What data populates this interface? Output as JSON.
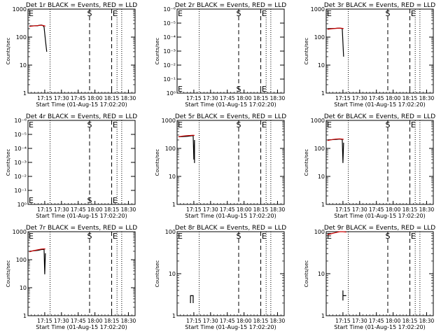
{
  "chart_data": [
    {
      "type": "line",
      "title": "Det 1r BLACK = Events, RED = LLD",
      "xlabel": "Start Time (01-Aug-15 17:02:20)",
      "ylabel": "Counts/sec",
      "scale": "log",
      "ytick_labels": [
        "1",
        "10",
        "100",
        "1000"
      ],
      "xtick_labels": [
        "17:15",
        "17:30",
        "17:45",
        "18:00",
        "18:15",
        "18:30"
      ],
      "markers": [
        "E",
        "S",
        "E"
      ],
      "series": [
        {
          "color": "#000000",
          "x": [
            17.02,
            17.15,
            17.16,
            17.2,
            17.22,
            17.24,
            17.26,
            17.28
          ],
          "y": [
            250,
            255,
            262,
            270,
            260,
            230,
            80,
            30
          ]
        },
        {
          "color": "#cc0000",
          "x": [
            17.02,
            17.08,
            17.14,
            17.2,
            17.24,
            17.26
          ],
          "y": [
            240,
            250,
            258,
            265,
            255,
            245
          ]
        }
      ]
    },
    {
      "type": "line",
      "title": "Det 2r BLACK = Events, RED = LLD",
      "xlabel": "Start Time (01-Aug-15 17:02:20)",
      "ylabel": "Counts/sec",
      "scale": "log",
      "ytick_labels": [
        "10⁰",
        "10⁻¹",
        "10⁻²",
        "10⁻³",
        "10⁻⁴",
        "10⁻⁵",
        "10⁻⁶"
      ],
      "xtick_labels": [
        "17:15",
        "17:30",
        "17:45",
        "18:00",
        "18:15",
        "18:30"
      ],
      "markers": [
        "E",
        "S",
        "E"
      ],
      "series": []
    },
    {
      "type": "line",
      "title": "Det 3r BLACK = Events, RED = LLD",
      "xlabel": "Start Time (01-Aug-15 17:02:20)",
      "ylabel": "Counts/sec",
      "scale": "log",
      "ytick_labels": [
        "1",
        "10",
        "100",
        "1000"
      ],
      "xtick_labels": [
        "17:15",
        "17:30",
        "17:45",
        "18:00",
        "18:15",
        "18:30"
      ],
      "markers": [
        "E",
        "S",
        "E"
      ],
      "series": [
        {
          "color": "#000000",
          "x": [
            17.02,
            17.15,
            17.2,
            17.24,
            17.26
          ],
          "y": [
            200,
            205,
            210,
            200,
            20
          ]
        },
        {
          "color": "#cc0000",
          "x": [
            17.02,
            17.08,
            17.14,
            17.2,
            17.24,
            17.26
          ],
          "y": [
            190,
            198,
            205,
            210,
            205,
            200
          ]
        }
      ]
    },
    {
      "type": "line",
      "title": "Det 4r BLACK = Events, RED = LLD",
      "xlabel": "Start Time (01-Aug-15 17:02:20)",
      "ylabel": "Counts/sec",
      "scale": "log",
      "ytick_labels": [
        "10⁰",
        "10⁻¹",
        "10⁻²",
        "10⁻³",
        "10⁻⁴",
        "10⁻⁵",
        "10⁻⁶"
      ],
      "xtick_labels": [
        "17:15",
        "17:30",
        "17:45",
        "18:00",
        "18:15",
        "18:30"
      ],
      "markers": [
        "E",
        "S",
        "E"
      ],
      "series": []
    },
    {
      "type": "line",
      "title": "Det 5r BLACK = Events, RED = LLD",
      "xlabel": "Start Time (01-Aug-15 17:02:20)",
      "ylabel": "Counts/sec",
      "scale": "log",
      "ytick_labels": [
        "1",
        "10",
        "100",
        "1000"
      ],
      "xtick_labels": [
        "17:15",
        "17:30",
        "17:45",
        "18:00",
        "18:15",
        "18:30"
      ],
      "markers": [
        "E",
        "S",
        "E"
      ],
      "series": [
        {
          "color": "#000000",
          "x": [
            17.02,
            17.15,
            17.2,
            17.24,
            17.25,
            17.26,
            17.26
          ],
          "y": [
            260,
            270,
            280,
            285,
            40,
            200,
            30
          ]
        },
        {
          "color": "#cc0000",
          "x": [
            17.02,
            17.08,
            17.14,
            17.2,
            17.24,
            17.26
          ],
          "y": [
            260,
            275,
            285,
            290,
            295,
            290
          ]
        }
      ]
    },
    {
      "type": "line",
      "title": "Det 6r BLACK = Events, RED = LLD",
      "xlabel": "Start Time (01-Aug-15 17:02:20)",
      "ylabel": "Counts/sec",
      "scale": "log",
      "ytick_labels": [
        "1",
        "10",
        "100",
        "1000"
      ],
      "xtick_labels": [
        "17:15",
        "17:30",
        "17:45",
        "18:00",
        "18:15",
        "18:30"
      ],
      "markers": [
        "E",
        "S",
        "E"
      ],
      "series": [
        {
          "color": "#000000",
          "x": [
            17.02,
            17.15,
            17.2,
            17.24,
            17.25,
            17.26
          ],
          "y": [
            200,
            210,
            215,
            210,
            30,
            160
          ]
        },
        {
          "color": "#cc0000",
          "x": [
            17.02,
            17.08,
            17.14,
            17.2,
            17.24,
            17.26
          ],
          "y": [
            190,
            205,
            215,
            220,
            215,
            210
          ]
        }
      ]
    },
    {
      "type": "line",
      "title": "Det 7r BLACK = Events, RED = LLD",
      "xlabel": "Start Time (01-Aug-15 17:02:20)",
      "ylabel": "Counts/sec",
      "scale": "log",
      "ytick_labels": [
        "1",
        "10",
        "100",
        "1000"
      ],
      "xtick_labels": [
        "17:15",
        "17:30",
        "17:45",
        "18:00",
        "18:15",
        "18:30"
      ],
      "markers": [
        "E",
        "S",
        "E"
      ],
      "series": [
        {
          "color": "#000000",
          "x": [
            17.02,
            17.15,
            17.2,
            17.24,
            17.25,
            17.26
          ],
          "y": [
            200,
            215,
            230,
            235,
            30,
            170
          ]
        },
        {
          "color": "#cc0000",
          "x": [
            17.02,
            17.08,
            17.14,
            17.2,
            17.24,
            17.26
          ],
          "y": [
            190,
            210,
            225,
            240,
            245,
            240
          ]
        }
      ]
    },
    {
      "type": "line",
      "title": "Det 8r BLACK = Events, RED = LLD",
      "xlabel": "Start Time (01-Aug-15 17:02:20)",
      "ylabel": "Counts/sec",
      "scale": "log",
      "ytick_labels": [
        "1",
        "10",
        "100"
      ],
      "xtick_labels": [
        "17:15",
        "17:30",
        "17:45",
        "18:00",
        "18:15",
        "18:30"
      ],
      "markers": [
        "E",
        "S",
        "E"
      ],
      "series": [
        {
          "color": "#000000",
          "x": [
            17.2,
            17.2,
            17.24,
            17.24
          ],
          "y": [
            2,
            3,
            3,
            2
          ]
        }
      ]
    },
    {
      "type": "line",
      "title": "Det 9r BLACK = Events, RED = LLD",
      "xlabel": "Start Time (01-Aug-15 17:02:20)",
      "ylabel": "Counts/sec",
      "scale": "log",
      "ytick_labels": [
        "1",
        "10",
        "100"
      ],
      "xtick_labels": [
        "17:15",
        "17:30",
        "17:45",
        "18:00",
        "18:15",
        "18:30"
      ],
      "markers": [
        "E",
        "S",
        "E"
      ],
      "series": [
        {
          "color": "#000000",
          "x": [
            17.25,
            17.25,
            17.25,
            17.3
          ],
          "y": [
            2.3,
            4,
            3,
            3
          ]
        },
        {
          "color": "#cc0000",
          "x": [
            17.02,
            17.08,
            17.14,
            17.2,
            17.25,
            17.3
          ],
          "y": [
            85,
            90,
            95,
            100,
            100,
            98
          ]
        }
      ]
    }
  ]
}
